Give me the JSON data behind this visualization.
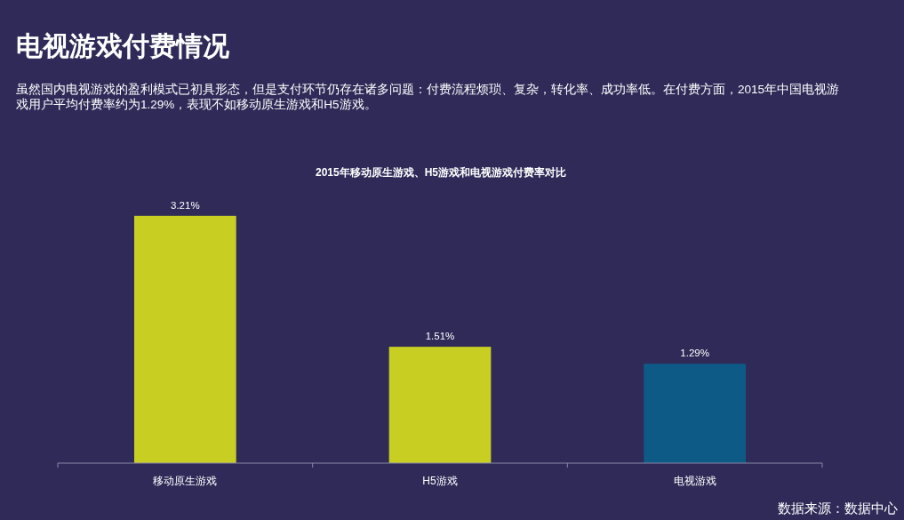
{
  "chart_data": {
    "type": "bar",
    "title": "2015年移动原生游戏、H5游戏和电视游戏付费率对比",
    "annotations": [
      "电视游戏付费情况",
      "虽然国内电视游戏的盈利模式已初具形态，但是支付环节仍存在诸多问题：付费流程烦琐、复杂，转化率、成功率低。在付费方面，2015年中国电视游戏用户平均付费率约为1.29%，表现不如移动原生游戏和H5游戏。",
      "数据来源：数据中心"
    ],
    "categories": [
      "移动原生游戏",
      "H5游戏",
      "电视游戏"
    ],
    "values": [
      3.21,
      1.51,
      1.29
    ],
    "colors": [
      "#c9cf22",
      "#c9cf22",
      "#0e5a86"
    ],
    "value_labels": [
      "3.21%",
      "1.51%",
      "1.29%"
    ]
  }
}
